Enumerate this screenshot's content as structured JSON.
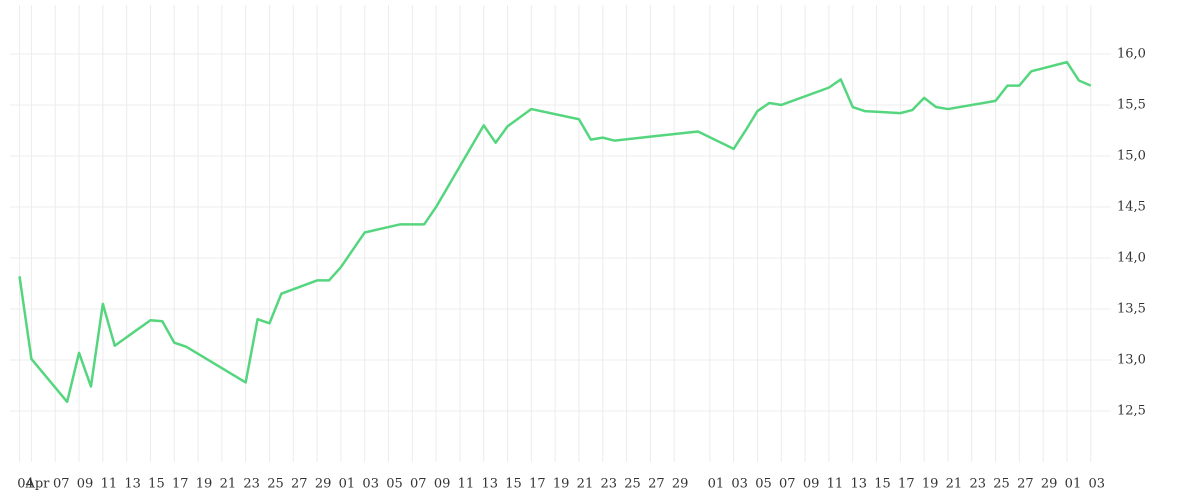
{
  "chart_data": {
    "type": "line",
    "x": [
      3,
      4,
      7,
      8,
      9,
      10,
      11,
      14,
      15,
      16,
      17,
      22,
      23,
      24,
      25,
      28,
      29,
      30,
      32,
      35,
      37,
      38,
      42,
      43,
      44,
      46,
      50,
      51,
      52,
      53,
      56,
      60,
      63,
      64,
      65,
      66,
      67,
      71,
      72,
      73,
      74,
      77,
      78,
      79,
      80,
      81,
      85,
      86,
      87,
      88,
      91,
      92,
      93
    ],
    "series": [
      {
        "color": "#55d67e",
        "values": [
          13.82,
          13.01,
          12.59,
          13.07,
          12.74,
          13.55,
          13.14,
          13.39,
          13.38,
          13.17,
          13.13,
          12.78,
          13.4,
          13.36,
          13.65,
          13.78,
          13.78,
          13.91,
          14.25,
          14.33,
          14.33,
          14.5,
          15.3,
          15.13,
          15.29,
          15.46,
          15.36,
          15.16,
          15.18,
          15.15,
          15.19,
          15.24,
          15.07,
          15.25,
          15.44,
          15.52,
          15.5,
          15.67,
          15.75,
          15.48,
          15.44,
          15.42,
          15.45,
          15.57,
          15.48,
          15.46,
          15.54,
          15.69,
          15.69,
          15.83,
          15.92,
          15.74,
          15.69
        ]
      }
    ],
    "xlim": [
      2.2,
      94.7
    ],
    "xticks": [
      {
        "value": 3,
        "label": "04"
      },
      {
        "value": 4,
        "label": "Apr"
      },
      {
        "value": 6,
        "label": "07"
      },
      {
        "value": 8,
        "label": "09"
      },
      {
        "value": 10,
        "label": "11"
      },
      {
        "value": 12,
        "label": "13"
      },
      {
        "value": 14,
        "label": "15"
      },
      {
        "value": 16,
        "label": "17"
      },
      {
        "value": 18,
        "label": "19"
      },
      {
        "value": 20,
        "label": "21"
      },
      {
        "value": 22,
        "label": "23"
      },
      {
        "value": 24,
        "label": "25"
      },
      {
        "value": 26,
        "label": "27"
      },
      {
        "value": 28,
        "label": "29"
      },
      {
        "value": 30,
        "label": "01"
      },
      {
        "value": 32,
        "label": "03"
      },
      {
        "value": 34,
        "label": "05"
      },
      {
        "value": 36,
        "label": "07"
      },
      {
        "value": 38,
        "label": "09"
      },
      {
        "value": 40,
        "label": "11"
      },
      {
        "value": 42,
        "label": "13"
      },
      {
        "value": 44,
        "label": "15"
      },
      {
        "value": 46,
        "label": "17"
      },
      {
        "value": 48,
        "label": "19"
      },
      {
        "value": 50,
        "label": "21"
      },
      {
        "value": 52,
        "label": "23"
      },
      {
        "value": 54,
        "label": "25"
      },
      {
        "value": 56,
        "label": "27"
      },
      {
        "value": 58,
        "label": "29"
      },
      {
        "value": 61,
        "label": "01"
      },
      {
        "value": 63,
        "label": "03"
      },
      {
        "value": 65,
        "label": "05"
      },
      {
        "value": 67,
        "label": "07"
      },
      {
        "value": 69,
        "label": "09"
      },
      {
        "value": 71,
        "label": "11"
      },
      {
        "value": 73,
        "label": "13"
      },
      {
        "value": 75,
        "label": "15"
      },
      {
        "value": 77,
        "label": "17"
      },
      {
        "value": 79,
        "label": "19"
      },
      {
        "value": 81,
        "label": "21"
      },
      {
        "value": 83,
        "label": "23"
      },
      {
        "value": 85,
        "label": "25"
      },
      {
        "value": 87,
        "label": "27"
      },
      {
        "value": 89,
        "label": "29"
      },
      {
        "value": 91,
        "label": "01"
      },
      {
        "value": 93,
        "label": "03"
      }
    ],
    "ylim": [
      12,
      16.48
    ],
    "yticks": [
      {
        "value": 12.5,
        "label": "12,5"
      },
      {
        "value": 13,
        "label": "13,0"
      },
      {
        "value": 13.5,
        "label": "13,5"
      },
      {
        "value": 14,
        "label": "14,0"
      },
      {
        "value": 14.5,
        "label": "14,5"
      },
      {
        "value": 15,
        "label": "15,0"
      },
      {
        "value": 15.5,
        "label": "15,5"
      },
      {
        "value": 16,
        "label": "16,0"
      }
    ],
    "grid": true
  }
}
